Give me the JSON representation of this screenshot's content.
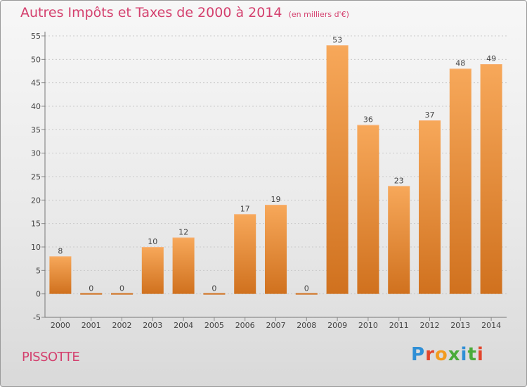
{
  "header": {
    "title": "Autres Impôts et Taxes de 2000 à 2014",
    "unit": "(en milliers d'€)"
  },
  "footer": {
    "place": "PISSOTTE",
    "brand": "Proxiti"
  },
  "colors": {
    "title": "#d4406e",
    "bar_light": "#f7a85a",
    "bar_dark": "#d0711e",
    "brand_p": "#2f8fd6",
    "brand_r": "#e2452c",
    "brand_o": "#f29b1f",
    "brand_x": "#4aab3a"
  },
  "chart_data": {
    "type": "bar",
    "title": "Autres Impôts et Taxes de 2000 à 2014",
    "ylabel": "en milliers d'€",
    "xlabel": "",
    "categories": [
      "2000",
      "2001",
      "2002",
      "2003",
      "2004",
      "2005",
      "2006",
      "2007",
      "2008",
      "2009",
      "2010",
      "2011",
      "2012",
      "2013",
      "2014"
    ],
    "values": [
      8,
      0,
      0,
      10,
      12,
      0,
      17,
      19,
      0,
      53,
      36,
      23,
      37,
      48,
      49
    ],
    "ylim": [
      -5,
      55
    ],
    "yticks": [
      -5,
      0,
      5,
      10,
      15,
      20,
      25,
      30,
      35,
      40,
      45,
      50,
      55
    ],
    "grid": true
  }
}
